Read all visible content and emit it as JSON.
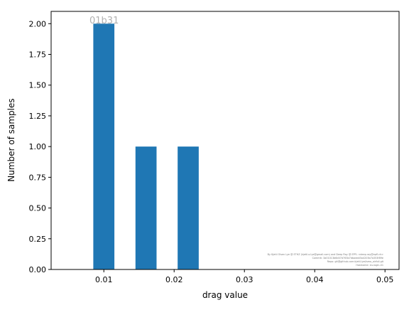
{
  "chart_data": {
    "type": "bar",
    "x": [
      0.0085,
      0.0145,
      0.0205
    ],
    "values": [
      2,
      1,
      1
    ],
    "bar_width": 0.003,
    "xlabel": "drag value",
    "ylabel": "Number of samples",
    "xlim": [
      0.0025,
      0.052
    ],
    "ylim": [
      0,
      2.1
    ],
    "xticks": [
      0.01,
      0.02,
      0.03,
      0.04,
      0.05
    ],
    "xtick_labels": [
      "0.01",
      "0.02",
      "0.03",
      "0.04",
      "0.05"
    ],
    "yticks": [
      0,
      0.25,
      0.5,
      0.75,
      1.0,
      1.25,
      1.5,
      1.75,
      2.0
    ],
    "ytick_labels": [
      "0.00",
      "0.25",
      "0.50",
      "0.75",
      "1.00",
      "1.25",
      "1.50",
      "1.75",
      "2.00"
    ],
    "grid": false,
    "bar_color": "#1f77b4",
    "watermark": "01b31",
    "watermark_color": "#b0b0b0",
    "credits": [
      "By Kjetil Olsen Lye @ ETHZ (kjetil.o.lye@gmail.com) and Deep Ray @ EPFL <deep.ray@epfl.ch>",
      "Commit: 3a01013b6d07d763b7dbaddd3a4203b7a353f89e",
      "Repo: git@github.com:kjetil-lye/ismo_airfoil.git",
      "Hostname: eu-login-41"
    ]
  }
}
